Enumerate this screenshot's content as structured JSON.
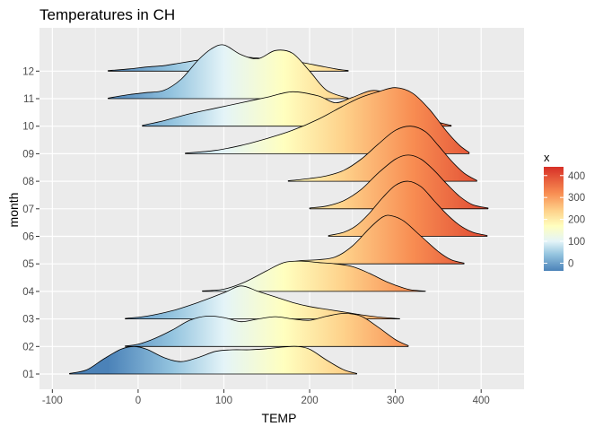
{
  "chart_data": {
    "type": "ridgeline",
    "title": "Temperatures in CH",
    "xlabel": "TEMP",
    "ylabel": "month",
    "xlim": [
      -115,
      450
    ],
    "x_ticks": [
      -100,
      0,
      100,
      200,
      300,
      400
    ],
    "x_tick_labels": [
      "-100",
      "0",
      "100",
      "200",
      "300",
      "400"
    ],
    "categories": [
      "01",
      "02",
      "03",
      "04",
      "05",
      "06",
      "07",
      "08",
      "09",
      "10",
      "11",
      "12"
    ],
    "ridge_scale": 2.3,
    "grid": true,
    "legend": {
      "title": "x",
      "placement": "right",
      "range": [
        -35,
        440
      ],
      "ticks": [
        0,
        100,
        200,
        300,
        400
      ],
      "tick_labels": [
        "0",
        "100",
        "200",
        "300",
        "400"
      ],
      "colors": [
        {
          "value": -35,
          "color": "#4b82b8"
        },
        {
          "value": 40,
          "color": "#94c4df"
        },
        {
          "value": 100,
          "color": "#e4f4f8"
        },
        {
          "value": 170,
          "color": "#ffffbf"
        },
        {
          "value": 240,
          "color": "#fed18a"
        },
        {
          "value": 320,
          "color": "#f88d52"
        },
        {
          "value": 440,
          "color": "#d73027"
        }
      ]
    },
    "series": [
      {
        "category": "01",
        "x": [
          -80,
          -60,
          -40,
          -20,
          -5,
          10,
          30,
          50,
          70,
          90,
          110,
          130,
          150,
          170,
          185,
          200,
          220,
          240,
          255
        ],
        "density": [
          0.02,
          0.15,
          0.55,
          0.9,
          1.0,
          0.9,
          0.6,
          0.45,
          0.6,
          0.82,
          0.88,
          0.88,
          0.92,
          0.98,
          1.0,
          0.9,
          0.5,
          0.15,
          0.02
        ]
      },
      {
        "category": "02",
        "x": [
          -15,
          0,
          20,
          40,
          60,
          80,
          100,
          120,
          140,
          160,
          180,
          200,
          220,
          240,
          260,
          280,
          300,
          315
        ],
        "density": [
          0.02,
          0.08,
          0.3,
          0.6,
          0.95,
          1.1,
          1.05,
          0.9,
          1.0,
          1.08,
          1.0,
          0.95,
          1.1,
          1.2,
          1.1,
          0.7,
          0.25,
          0.03
        ]
      },
      {
        "category": "03",
        "x": [
          -15,
          10,
          40,
          70,
          100,
          120,
          140,
          160,
          180,
          200,
          220,
          240,
          260,
          280,
          305
        ],
        "density": [
          0.02,
          0.1,
          0.3,
          0.6,
          0.95,
          1.2,
          1.0,
          0.8,
          0.6,
          0.45,
          0.35,
          0.25,
          0.15,
          0.07,
          0.01
        ]
      },
      {
        "category": "04",
        "x": [
          75,
          100,
          125,
          150,
          170,
          190,
          210,
          230,
          250,
          270,
          290,
          310,
          320,
          335
        ],
        "density": [
          0.02,
          0.08,
          0.35,
          0.75,
          1.05,
          1.1,
          1.05,
          1.0,
          0.9,
          0.65,
          0.35,
          0.12,
          0.05,
          0.01
        ]
      },
      {
        "category": "05",
        "x": [
          170,
          190,
          210,
          230,
          250,
          270,
          285,
          295,
          310,
          330,
          350,
          365,
          380
        ],
        "density": [
          0.03,
          0.12,
          0.15,
          0.25,
          0.65,
          1.3,
          1.7,
          1.75,
          1.55,
          1.0,
          0.45,
          0.15,
          0.03
        ]
      },
      {
        "category": "06",
        "x": [
          222,
          240,
          255,
          270,
          285,
          300,
          315,
          330,
          345,
          360,
          375,
          390,
          407
        ],
        "density": [
          0.03,
          0.15,
          0.4,
          0.85,
          1.4,
          1.85,
          2.0,
          1.8,
          1.3,
          0.8,
          0.4,
          0.15,
          0.03
        ]
      },
      {
        "category": "07",
        "x": [
          200,
          220,
          240,
          260,
          280,
          300,
          315,
          330,
          345,
          360,
          375,
          390,
          408
        ],
        "density": [
          0.03,
          0.1,
          0.3,
          0.7,
          1.3,
          1.8,
          1.95,
          1.8,
          1.4,
          0.9,
          0.45,
          0.15,
          0.03
        ]
      },
      {
        "category": "08",
        "x": [
          175,
          200,
          220,
          240,
          260,
          280,
          300,
          318,
          335,
          350,
          365,
          380,
          395
        ],
        "density": [
          0.02,
          0.1,
          0.2,
          0.4,
          0.8,
          1.35,
          1.85,
          2.0,
          1.8,
          1.3,
          0.75,
          0.3,
          0.03
        ]
      },
      {
        "category": "09",
        "x": [
          55,
          90,
          120,
          150,
          180,
          210,
          240,
          260,
          280,
          300,
          320,
          340,
          360,
          375,
          386
        ],
        "density": [
          0.02,
          0.12,
          0.3,
          0.55,
          0.85,
          1.25,
          1.75,
          2.05,
          2.25,
          2.4,
          2.2,
          1.6,
          0.8,
          0.3,
          0.05
        ]
      },
      {
        "category": "10",
        "x": [
          5,
          30,
          60,
          90,
          120,
          150,
          180,
          210,
          230,
          250,
          275,
          300,
          325,
          345,
          365
        ],
        "density": [
          0.03,
          0.2,
          0.45,
          0.65,
          0.85,
          1.05,
          1.25,
          1.1,
          0.85,
          1.05,
          1.3,
          1.05,
          0.55,
          0.2,
          0.03
        ]
      },
      {
        "category": "11",
        "x": [
          -35,
          -10,
          10,
          30,
          50,
          70,
          85,
          100,
          120,
          140,
          160,
          180,
          200,
          220,
          245
        ],
        "density": [
          0.02,
          0.15,
          0.22,
          0.3,
          0.7,
          1.4,
          1.8,
          1.95,
          1.6,
          1.45,
          1.75,
          1.65,
          1.0,
          0.3,
          0.02
        ]
      },
      {
        "category": "12",
        "x": [
          -35,
          -10,
          10,
          30,
          50,
          70,
          90,
          110,
          130,
          150,
          170,
          190,
          210,
          230,
          245
        ],
        "density": [
          0.02,
          0.08,
          0.15,
          0.2,
          0.3,
          0.4,
          0.5,
          0.55,
          0.5,
          0.45,
          0.4,
          0.32,
          0.2,
          0.08,
          0.02
        ]
      }
    ]
  }
}
